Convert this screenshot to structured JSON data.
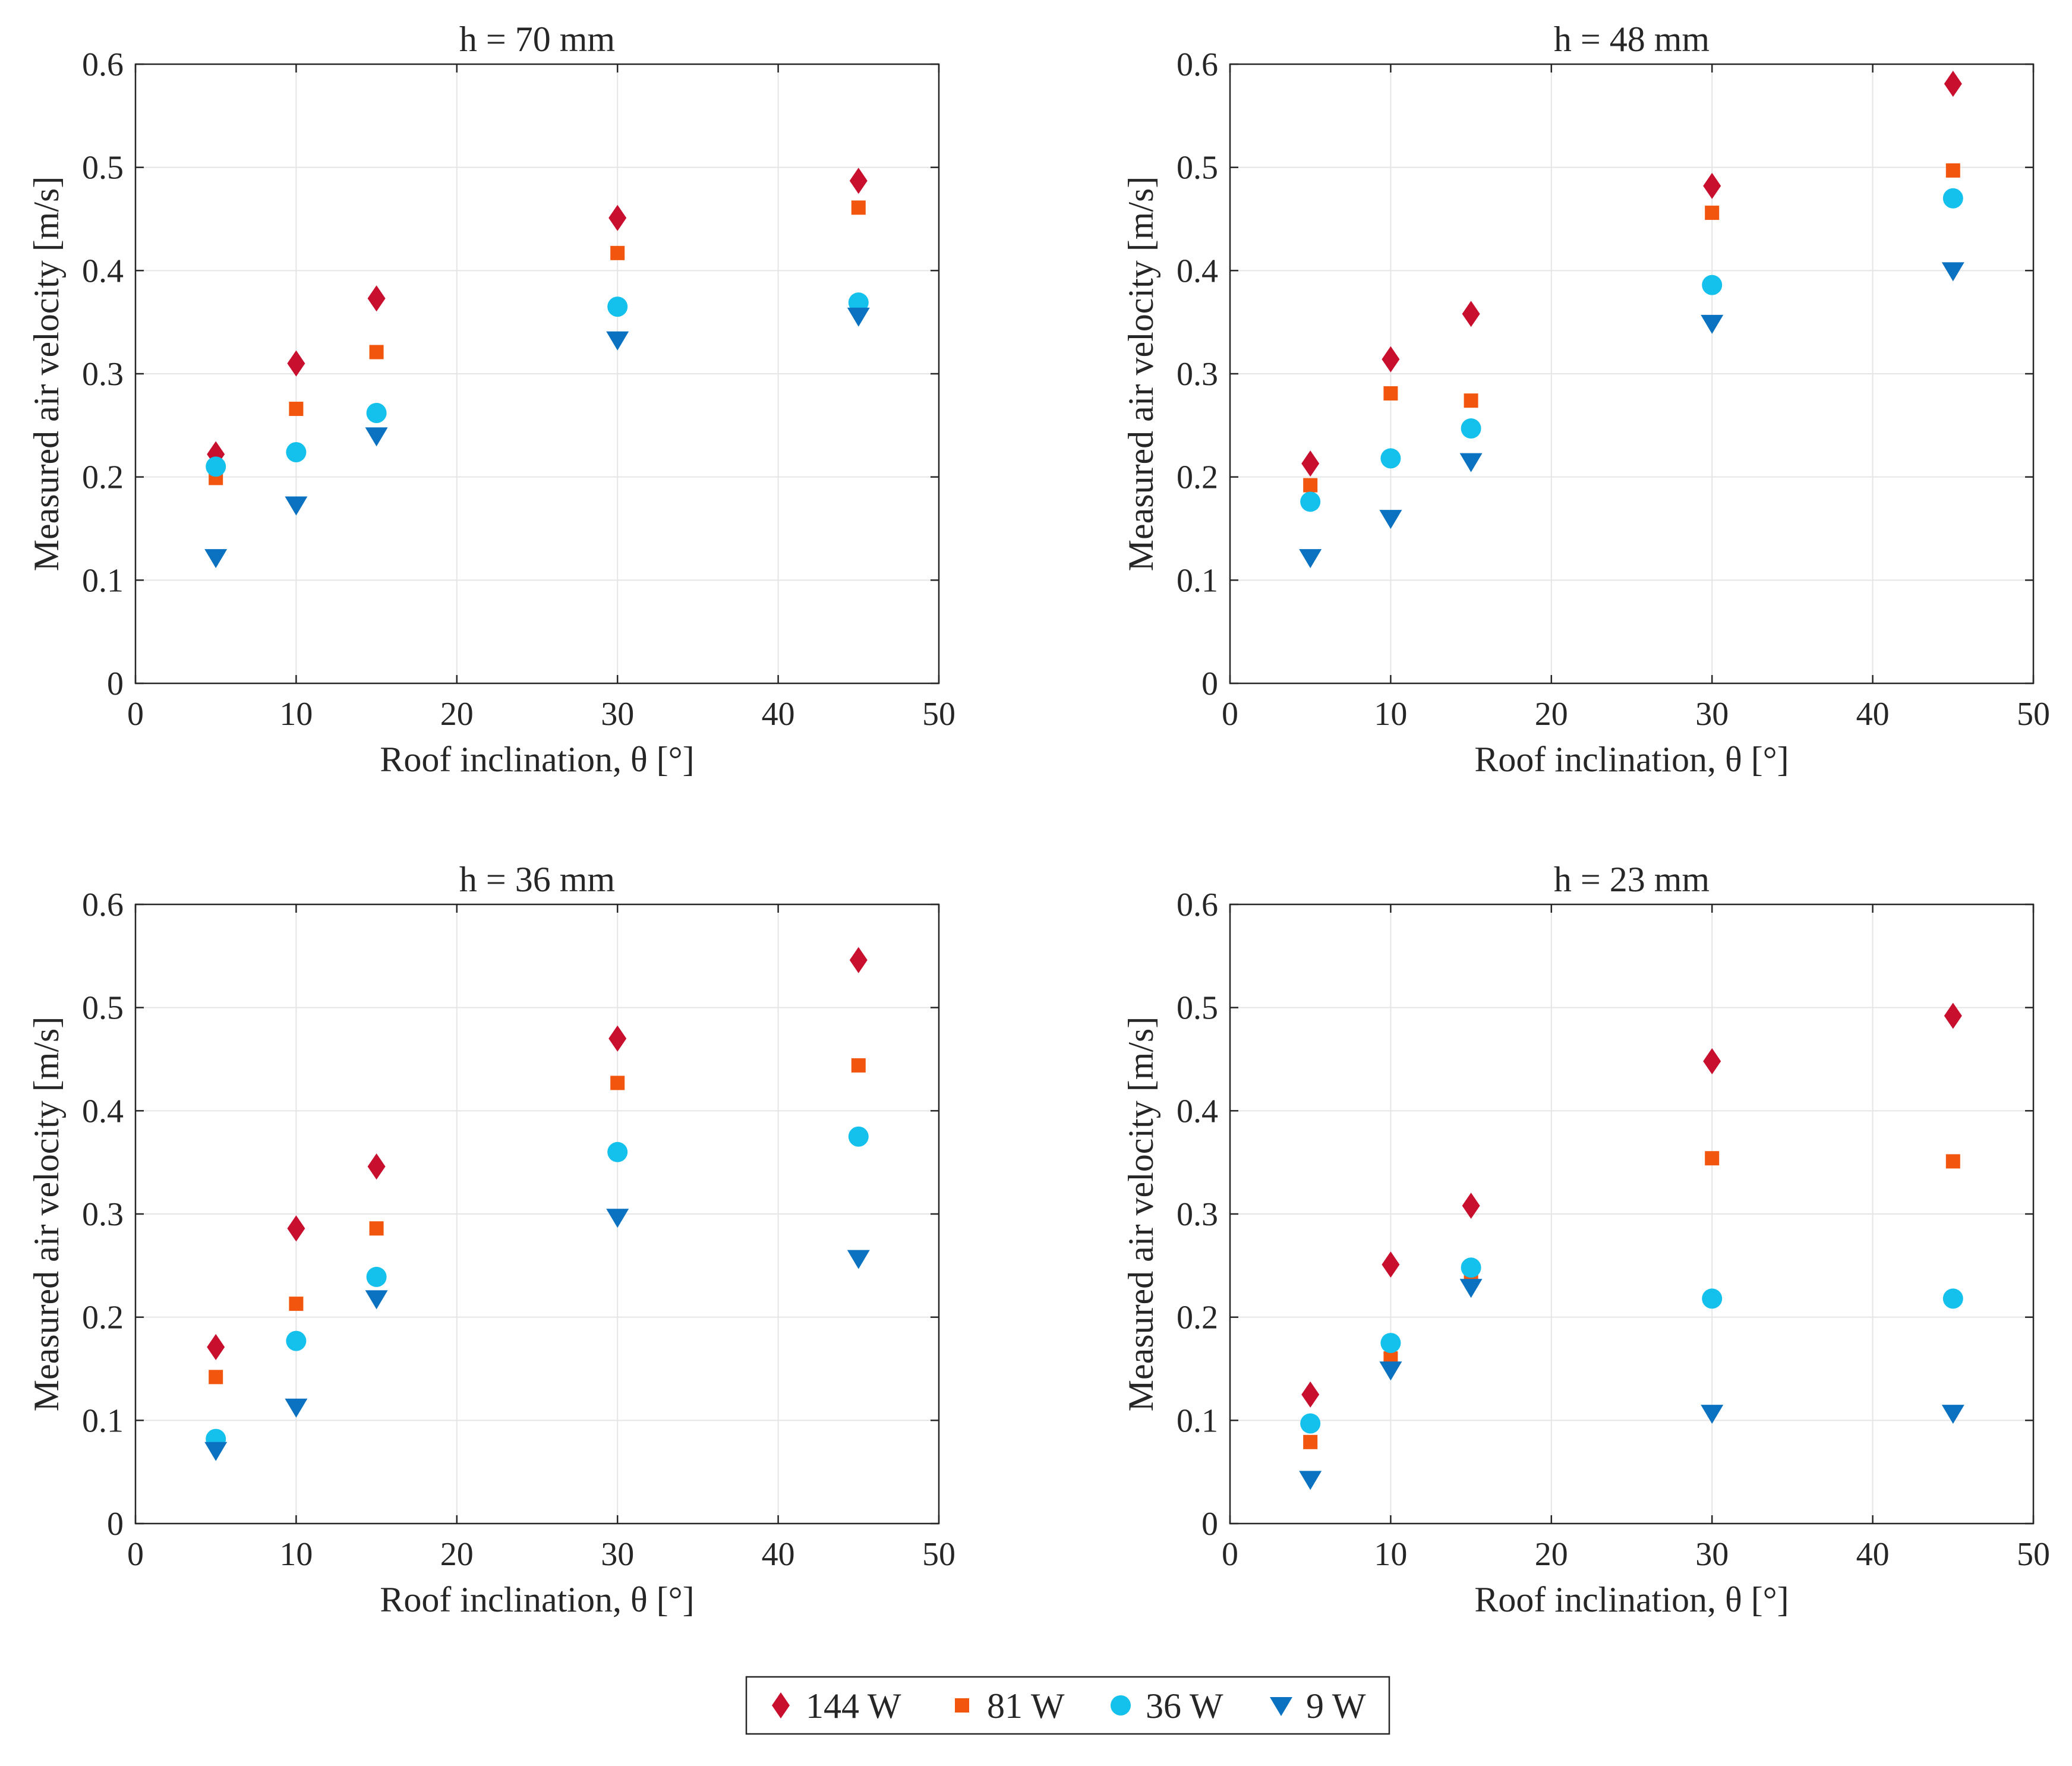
{
  "colors": {
    "144 W": "#c8102e",
    "81 W": "#f2550e",
    "36 W": "#14c0ec",
    "9 W": "#0a72c0",
    "axis": "#262626",
    "grid": "#e5e5e5"
  },
  "legend": {
    "entries": [
      {
        "label": "144 W",
        "marker": "diamond-icon"
      },
      {
        "label": "81 W",
        "marker": "square-icon"
      },
      {
        "label": "36 W",
        "marker": "circle-icon"
      },
      {
        "label": "9 W",
        "marker": "triangle-down-icon"
      }
    ],
    "placement": "bottom-center"
  },
  "chart_data": [
    {
      "type": "scatter",
      "title": "h = 70 mm",
      "xlabel": "Roof inclination, θ [°]",
      "ylabel": "Measured air velocity [m/s]",
      "xlim": [
        0,
        50
      ],
      "ylim": [
        0,
        0.6
      ],
      "xticks": [
        "0",
        "10",
        "20",
        "30",
        "40",
        "50"
      ],
      "yticks": [
        "0",
        "0.1",
        "0.2",
        "0.3",
        "0.4",
        "0.5",
        "0.6"
      ],
      "grid": true,
      "x": [
        5,
        10,
        15,
        30,
        45
      ],
      "series": [
        {
          "name": "144 W",
          "values": [
            0.222,
            0.31,
            0.373,
            0.451,
            0.487
          ]
        },
        {
          "name": "81 W",
          "values": [
            0.199,
            0.266,
            0.321,
            0.417,
            0.461
          ]
        },
        {
          "name": "36 W",
          "values": [
            0.21,
            0.224,
            0.262,
            0.365,
            0.369
          ]
        },
        {
          "name": "9 W",
          "values": [
            0.122,
            0.173,
            0.24,
            0.333,
            0.356
          ]
        }
      ]
    },
    {
      "type": "scatter",
      "title": "h = 48 mm",
      "xlabel": "Roof inclination, θ [°]",
      "ylabel": "Measured air velocity [m/s]",
      "xlim": [
        0,
        50
      ],
      "ylim": [
        0,
        0.6
      ],
      "xticks": [
        "0",
        "10",
        "20",
        "30",
        "40",
        "50"
      ],
      "yticks": [
        "0",
        "0.1",
        "0.2",
        "0.3",
        "0.4",
        "0.5",
        "0.6"
      ],
      "grid": true,
      "x": [
        5,
        10,
        15,
        30,
        45
      ],
      "series": [
        {
          "name": "144 W",
          "values": [
            0.213,
            0.314,
            0.358,
            0.482,
            0.581
          ]
        },
        {
          "name": "81 W",
          "values": [
            0.192,
            0.281,
            0.274,
            0.456,
            0.497
          ]
        },
        {
          "name": "36 W",
          "values": [
            0.176,
            0.218,
            0.247,
            0.386,
            0.47
          ]
        },
        {
          "name": "9 W",
          "values": [
            0.122,
            0.16,
            0.215,
            0.349,
            0.4
          ]
        }
      ]
    },
    {
      "type": "scatter",
      "title": "h = 36 mm",
      "xlabel": "Roof inclination, θ [°]",
      "ylabel": "Measured air velocity [m/s]",
      "xlim": [
        0,
        50
      ],
      "ylim": [
        0,
        0.6
      ],
      "xticks": [
        "0",
        "10",
        "20",
        "30",
        "40",
        "50"
      ],
      "yticks": [
        "0",
        "0.1",
        "0.2",
        "0.3",
        "0.4",
        "0.5",
        "0.6"
      ],
      "grid": true,
      "x": [
        5,
        10,
        15,
        30,
        45
      ],
      "series": [
        {
          "name": "144 W",
          "values": [
            0.171,
            0.286,
            0.346,
            0.47,
            0.546
          ]
        },
        {
          "name": "81 W",
          "values": [
            0.142,
            0.213,
            0.286,
            0.427,
            0.444
          ]
        },
        {
          "name": "36 W",
          "values": [
            0.082,
            0.177,
            0.239,
            0.36,
            0.375
          ]
        },
        {
          "name": "9 W",
          "values": [
            0.071,
            0.113,
            0.218,
            0.297,
            0.257
          ]
        }
      ]
    },
    {
      "type": "scatter",
      "title": "h = 23 mm",
      "xlabel": "Roof inclination, θ [°]",
      "ylabel": "Measured air velocity [m/s]",
      "xlim": [
        0,
        50
      ],
      "ylim": [
        0,
        0.6
      ],
      "xticks": [
        "0",
        "10",
        "20",
        "30",
        "40",
        "50"
      ],
      "yticks": [
        "0",
        "0.1",
        "0.2",
        "0.3",
        "0.4",
        "0.5",
        "0.6"
      ],
      "grid": true,
      "x": [
        5,
        10,
        15,
        30,
        45
      ],
      "series": [
        {
          "name": "144 W",
          "values": [
            0.125,
            0.251,
            0.308,
            0.448,
            0.492
          ]
        },
        {
          "name": "81 W",
          "values": [
            0.079,
            0.16,
            0.24,
            0.354,
            0.351
          ]
        },
        {
          "name": "36 W",
          "values": [
            0.097,
            0.175,
            0.248,
            0.218,
            0.218
          ]
        },
        {
          "name": "9 W",
          "values": [
            0.043,
            0.149,
            0.229,
            0.107,
            0.107
          ]
        }
      ]
    }
  ]
}
